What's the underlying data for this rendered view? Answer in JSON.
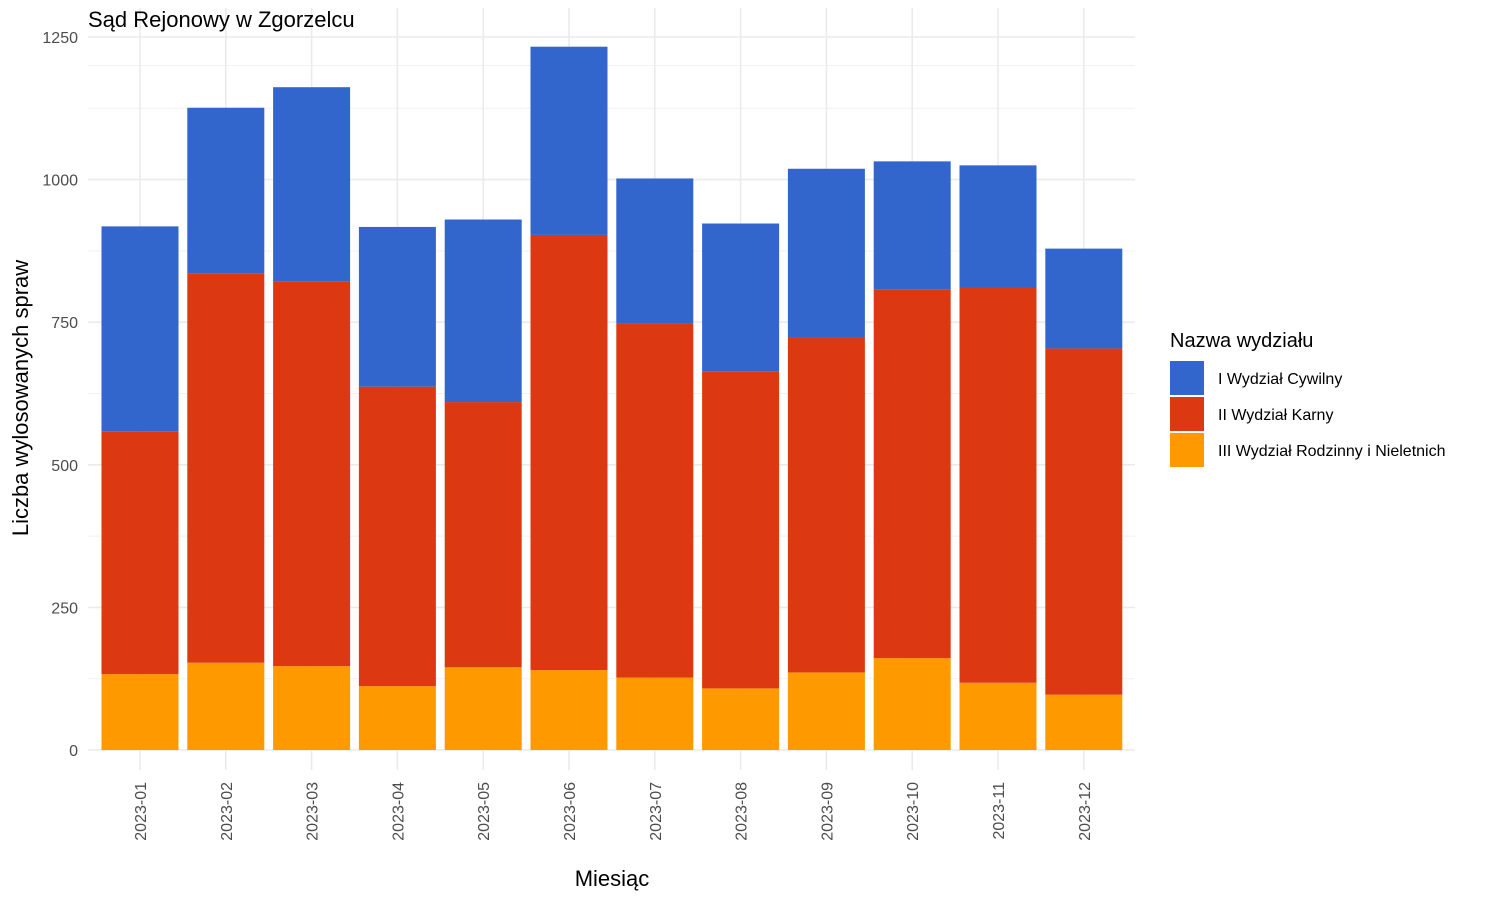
{
  "chart_data": {
    "type": "bar",
    "stacked": true,
    "title": "Sąd Rejonowy w Zgorzelcu",
    "xlabel": "Miesiąc",
    "ylabel": "Liczba wylosowanych spraw",
    "ylim": [
      0,
      1250
    ],
    "yticks": [
      0,
      250,
      500,
      750,
      1000,
      1250
    ],
    "grid": true,
    "legend_placement": "right",
    "legend_title": "Nazwa wydziału",
    "categories": [
      "2023-01",
      "2023-02",
      "2023-03",
      "2023-04",
      "2023-05",
      "2023-06",
      "2023-07",
      "2023-08",
      "2023-09",
      "2023-10",
      "2023-11",
      "2023-12"
    ],
    "series": [
      {
        "name": "I Wydział Cywilny",
        "color": "#3366cc",
        "values": [
          360,
          290,
          340,
          280,
          320,
          330,
          255,
          260,
          295,
          225,
          215,
          175
        ]
      },
      {
        "name": "II Wydział Karny",
        "color": "#dc3912",
        "values": [
          425,
          683,
          675,
          525,
          465,
          763,
          620,
          555,
          588,
          646,
          692,
          607
        ]
      },
      {
        "name": "III Wydział Rodzinny i Nieletnich",
        "color": "#ff9900",
        "values": [
          133,
          153,
          147,
          112,
          145,
          140,
          127,
          108,
          136,
          161,
          118,
          97
        ]
      }
    ]
  }
}
